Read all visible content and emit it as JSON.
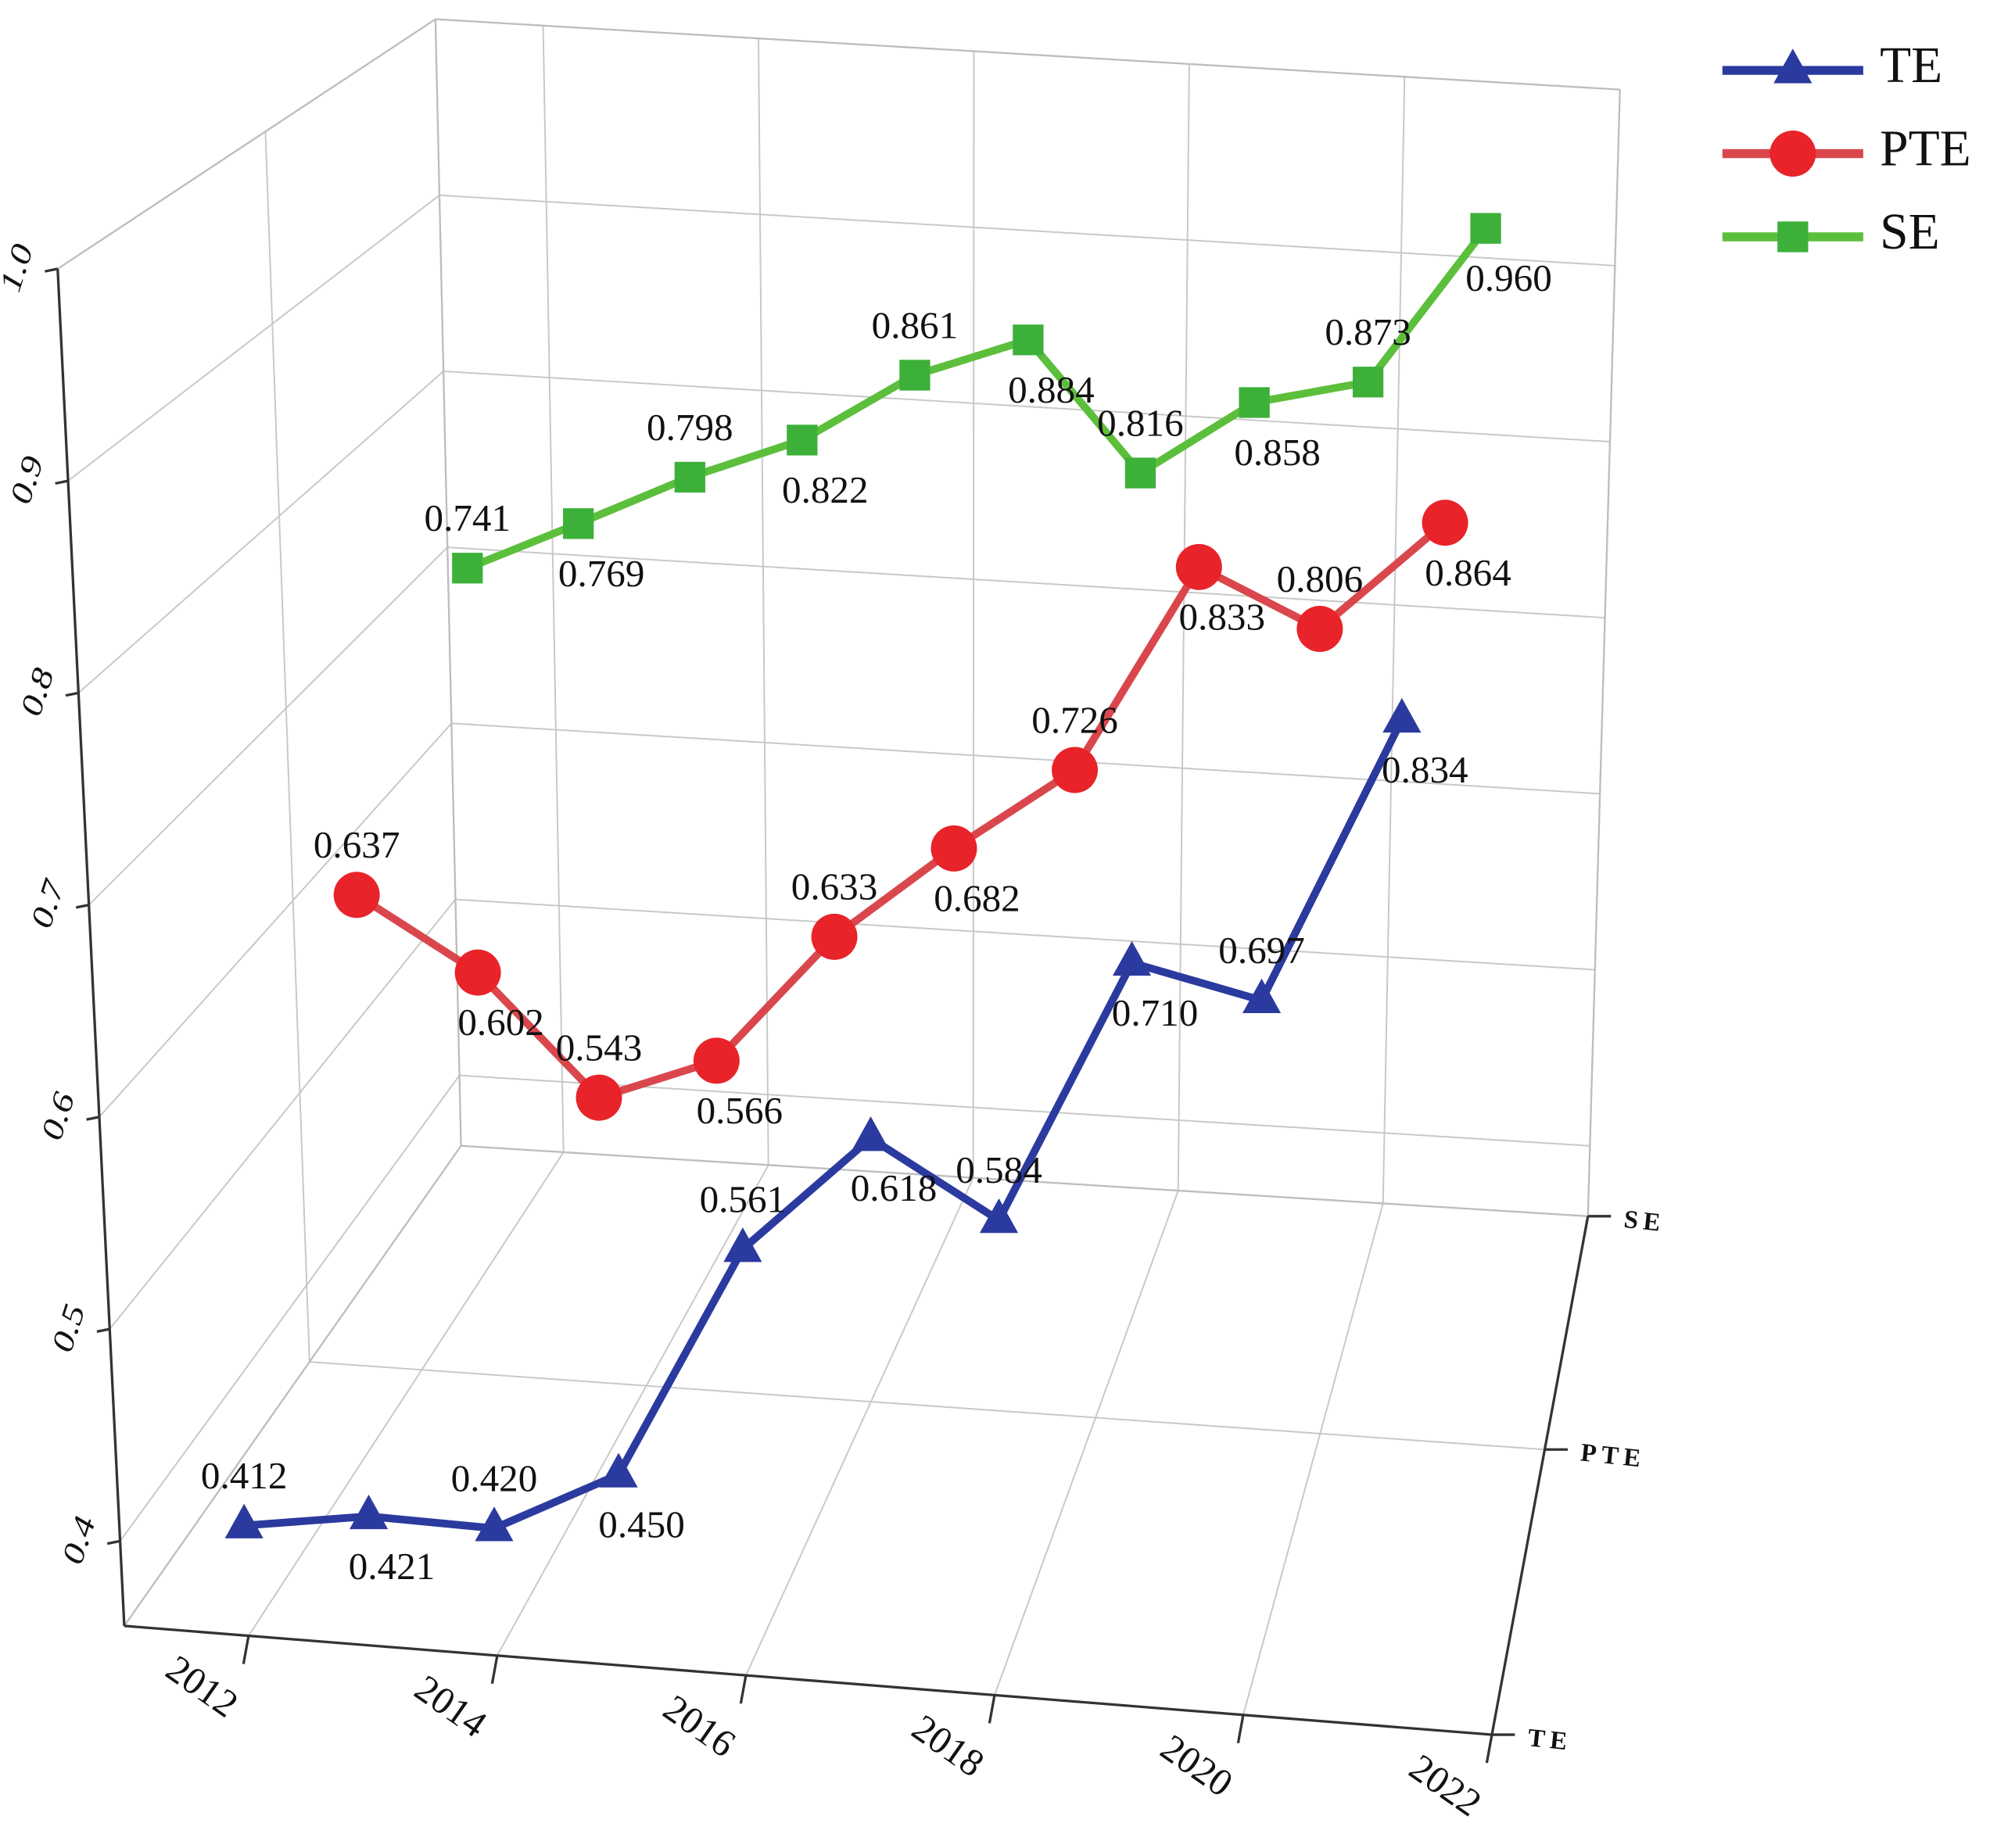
{
  "chart_data": {
    "type": "line",
    "x": [
      2012,
      2013,
      2014,
      2015,
      2016,
      2017,
      2018,
      2019,
      2020,
      2021
    ],
    "xlim": [
      2011,
      2022
    ],
    "xticks": [
      2012,
      2014,
      2016,
      2018,
      2020,
      2022
    ],
    "ylim": [
      0.36,
      1.0
    ],
    "yticks": [
      0.4,
      0.5,
      0.6,
      0.7,
      0.8,
      0.9,
      {
        "value": 1.0,
        "label": "1.0"
      }
    ],
    "z_categories": [
      "TE",
      "PTE",
      "SE"
    ],
    "grid": true,
    "legend": "upper right",
    "series": [
      {
        "name": "TE",
        "color": "#2b3a9e",
        "marker": "triangle",
        "values": [
          0.412,
          0.421,
          0.42,
          0.45,
          0.561,
          0.618,
          0.584,
          0.71,
          0.697,
          0.834
        ],
        "value_labels": [
          "0.412",
          "0.421",
          "0.420",
          "0.450",
          "0.561",
          "0.618",
          "0.584",
          "0.710",
          "0.697",
          "0.834"
        ]
      },
      {
        "name": "PTE",
        "color": "#e8232a",
        "line_color": "#d9474d",
        "marker": "circle",
        "values": [
          0.637,
          0.602,
          0.543,
          0.566,
          0.633,
          0.682,
          0.726,
          0.833,
          0.806,
          0.864
        ],
        "value_labels": [
          "0.637",
          "0.602",
          "0.543",
          "0.566",
          "0.633",
          "0.682",
          "0.726",
          "0.833",
          "0.806",
          "0.864"
        ]
      },
      {
        "name": "SE",
        "color": "#3db03a",
        "line_color": "#5cbf3c",
        "marker": "square",
        "values": [
          0.741,
          0.769,
          0.798,
          0.822,
          0.861,
          0.884,
          0.816,
          0.858,
          0.873,
          0.96
        ],
        "value_labels": [
          "0.741",
          "0.769",
          "0.798",
          "0.822",
          "0.861",
          "0.884",
          "0.816",
          "0.858",
          "0.873",
          "0.960"
        ]
      }
    ]
  }
}
